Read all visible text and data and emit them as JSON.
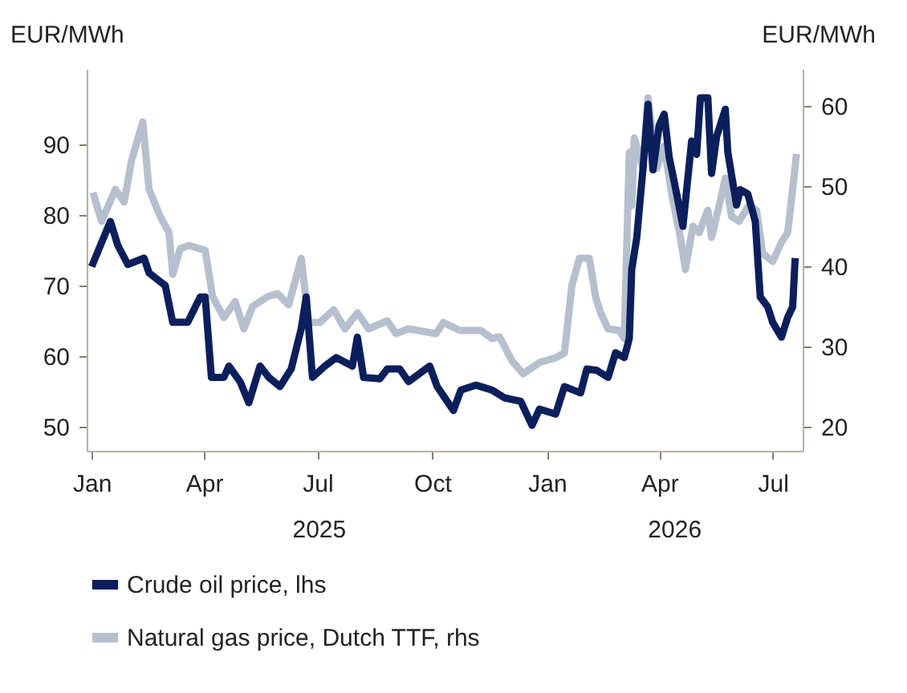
{
  "chart_data": {
    "type": "line",
    "ylabel": "EUR/MWh",
    "y2label": "EUR/MWh",
    "legend": "bottom",
    "xlim": [
      "2024-12-28",
      "2026-07-25"
    ],
    "ylim": [
      46.6,
      100.7
    ],
    "y2lim": [
      17,
      64.6
    ],
    "yticks": [
      50,
      60,
      70,
      80,
      90
    ],
    "y2ticks": [
      20,
      30,
      40,
      50,
      60
    ],
    "xticks": [
      {
        "value": "2025-01-01",
        "label": "Jan"
      },
      {
        "value": "2025-04-01",
        "label": "Apr"
      },
      {
        "value": "2025-07-01",
        "label": "Jul"
      },
      {
        "value": "2025-10-01",
        "label": "Oct"
      },
      {
        "value": "2026-01-01",
        "label": "Jan"
      },
      {
        "value": "2026-04-01",
        "label": "Apr"
      },
      {
        "value": "2026-07-01",
        "label": "Jul"
      }
    ],
    "annotations": [
      "2025",
      "2026"
    ],
    "series": [
      {
        "name": "Crude oil price, lhs",
        "color": "#0b1f5c",
        "x": [
          "2025-01-01",
          "2025-01-16",
          "2025-01-22",
          "2025-01-30",
          "2025-02-12",
          "2025-02-16",
          "2025-03-01",
          "2025-03-07",
          "2025-03-19",
          "2025-03-29",
          "2025-04-02",
          "2025-04-07",
          "2025-04-17",
          "2025-04-21",
          "2025-04-30",
          "2025-05-07",
          "2025-05-16",
          "2025-05-23",
          "2025-06-01",
          "2025-06-10",
          "2025-06-18",
          "2025-06-22",
          "2025-06-27",
          "2025-07-07",
          "2025-07-16",
          "2025-07-29",
          "2025-08-02",
          "2025-08-07",
          "2025-08-20",
          "2025-08-26",
          "2025-09-05",
          "2025-09-12",
          "2025-09-29",
          "2025-10-05",
          "2025-10-18",
          "2025-10-24",
          "2025-11-05",
          "2025-11-18",
          "2025-11-28",
          "2025-12-11",
          "2025-12-20",
          "2025-12-26",
          "2026-01-08",
          "2026-01-15",
          "2026-01-28",
          "2026-02-02",
          "2026-02-10",
          "2026-02-19",
          "2026-02-25",
          "2026-03-04",
          "2026-03-08",
          "2026-03-10",
          "2026-03-14",
          "2026-03-19",
          "2026-03-23",
          "2026-03-27",
          "2026-04-01",
          "2026-04-05",
          "2026-04-09",
          "2026-04-15",
          "2026-04-20",
          "2026-04-27",
          "2026-05-01",
          "2026-05-04",
          "2026-05-10",
          "2026-05-13",
          "2026-05-17",
          "2026-05-24",
          "2026-05-26",
          "2026-06-02",
          "2026-06-05",
          "2026-06-11",
          "2026-06-17",
          "2026-06-21",
          "2026-06-27",
          "2026-07-01",
          "2026-07-08",
          "2026-07-13",
          "2026-07-17",
          "2026-07-19"
        ],
        "values": [
          72.7,
          79.1,
          75.7,
          73,
          73.9,
          71.8,
          70,
          64.8,
          64.8,
          68.4,
          68.4,
          57,
          57,
          58.6,
          56.4,
          53.4,
          58.6,
          57,
          55.7,
          58.2,
          63.9,
          68.4,
          57,
          58.6,
          59.8,
          58.6,
          62.7,
          57,
          56.8,
          58.2,
          58.2,
          56.4,
          58.6,
          55.7,
          52.3,
          55.2,
          55.9,
          55.2,
          54.1,
          53.6,
          50.2,
          52.5,
          51.8,
          55.7,
          54.8,
          58.2,
          58,
          57,
          60.5,
          59.8,
          62.5,
          72.3,
          76.8,
          86.6,
          95.7,
          86.4,
          92.7,
          94.3,
          88.2,
          83,
          78.4,
          90.5,
          88.6,
          96.6,
          96.6,
          85.9,
          91.1,
          95,
          88.9,
          81.4,
          83.6,
          83,
          79.1,
          68.4,
          67,
          64.8,
          62.7,
          65.5,
          67,
          73.9
        ]
      },
      {
        "name": "Natural gas price, Dutch TTF, rhs",
        "color": "#b5bfce",
        "axis": "y2",
        "x": [
          "2025-01-02",
          "2025-01-09",
          "2025-01-20",
          "2025-01-27",
          "2025-02-02",
          "2025-02-11",
          "2025-02-16",
          "2025-02-25",
          "2025-03-04",
          "2025-03-07",
          "2025-03-13",
          "2025-03-20",
          "2025-04-02",
          "2025-04-08",
          "2025-04-17",
          "2025-04-26",
          "2025-05-03",
          "2025-05-10",
          "2025-05-22",
          "2025-05-30",
          "2025-06-08",
          "2025-06-18",
          "2025-06-24",
          "2025-07-03",
          "2025-07-14",
          "2025-07-23",
          "2025-08-02",
          "2025-08-11",
          "2025-08-26",
          "2025-09-02",
          "2025-09-12",
          "2025-10-04",
          "2025-10-10",
          "2025-10-23",
          "2025-11-09",
          "2025-11-18",
          "2025-11-24",
          "2025-12-04",
          "2025-12-13",
          "2025-12-26",
          "2026-01-08",
          "2026-01-15",
          "2026-01-21",
          "2026-01-27",
          "2026-02-04",
          "2026-02-09",
          "2026-02-13",
          "2026-02-19",
          "2026-02-28",
          "2026-03-04",
          "2026-03-08",
          "2026-03-10",
          "2026-03-12",
          "2026-03-19",
          "2026-03-23",
          "2026-03-30",
          "2026-04-05",
          "2026-04-11",
          "2026-04-18",
          "2026-04-22",
          "2026-04-28",
          "2026-05-03",
          "2026-05-10",
          "2026-05-13",
          "2026-05-20",
          "2026-05-24",
          "2026-05-29",
          "2026-06-04",
          "2026-06-12",
          "2026-06-18",
          "2026-06-23",
          "2026-07-01",
          "2026-07-08",
          "2026-07-13",
          "2026-07-17",
          "2026-07-20"
        ],
        "values": [
          49.2,
          45.6,
          49.6,
          48,
          53.2,
          58,
          49.6,
          46.2,
          44.2,
          39,
          42.2,
          42.6,
          42,
          36.2,
          33.6,
          35.6,
          32.2,
          35,
          36.2,
          36.6,
          35.2,
          41,
          33,
          33,
          34.6,
          32.2,
          34.2,
          32.2,
          33.2,
          31.6,
          32.2,
          31.6,
          33,
          32,
          32,
          31,
          31.2,
          28.2,
          26.6,
          28,
          28.6,
          29.2,
          37.6,
          41,
          41,
          36.2,
          34.2,
          32.2,
          32,
          31,
          54.2,
          47.6,
          56,
          52.2,
          61,
          52.2,
          55,
          49,
          43.6,
          39.6,
          45,
          44.2,
          47,
          43.6,
          48.2,
          51,
          46.2,
          45.6,
          47.6,
          47,
          41.6,
          40.6,
          43,
          44.2,
          49.6,
          54
        ]
      }
    ]
  }
}
